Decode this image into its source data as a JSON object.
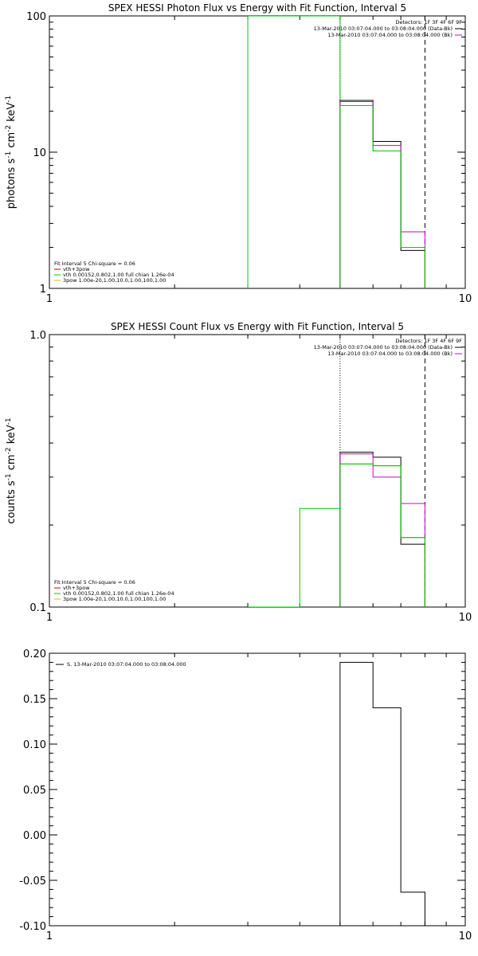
{
  "chart_data": [
    {
      "type": "line",
      "title": "SPEX HESSI Photon Flux vs Energy with Fit Function, Interval 5",
      "ylabel_text": "photons s",
      "ylabel_sup1": "-1",
      "ylabel_mid": " cm",
      "ylabel_sup2": "-2",
      "ylabel_end": " keV",
      "ylabel_sup3": "-1",
      "xscale": "log",
      "yscale": "log",
      "xlim": [
        1,
        10
      ],
      "ylim": [
        1,
        100
      ],
      "xticks": [
        {
          "v": 1,
          "label": "1"
        },
        {
          "v": 10,
          "label": "10"
        }
      ],
      "yticks": [
        {
          "v": 1,
          "label": "1"
        },
        {
          "v": 10,
          "label": "10"
        },
        {
          "v": 100,
          "label": "100"
        }
      ],
      "vlines": [
        {
          "x": 5,
          "style": "dotted"
        },
        {
          "x": 8,
          "style": "dashed"
        }
      ],
      "legend_tr": [
        {
          "text": "Detectors: 1F 3F 4F 6F 9F"
        },
        {
          "text": "13-Mar-2010 03:07:04.000 to 03:08:04.000 (Data-Bk)",
          "color": "#000000"
        },
        {
          "text": "13-Mar-2010 03:07:04.000 to 03:08:04.000 (Bk)",
          "color": "#cc00cc"
        }
      ],
      "legend_bl": [
        {
          "text": "Fit Interval 5   Chi-square = 0.06"
        },
        {
          "text": "vth+3pow",
          "color": "#cc0000"
        },
        {
          "text": "vth 0.00152,0.802,1.00  full chian 1.26e-04",
          "color": "#00cc00"
        },
        {
          "text": "3pow 1.00e-20,1.00,10.0,1.00,100,1.00",
          "color": "#ddbb00"
        }
      ],
      "series": [
        {
          "color": "#00cc00",
          "edges": [
            3,
            4,
            5,
            6,
            7,
            8
          ],
          "values": [
            100,
            100,
            22,
            10.2,
            2.0
          ]
        },
        {
          "color": "#000000",
          "edges": [
            5,
            6,
            7,
            8
          ],
          "values": [
            24,
            12,
            1.9
          ]
        },
        {
          "color": "#cc00cc",
          "edges": [
            5,
            6,
            7,
            8
          ],
          "values": [
            23.5,
            11.2,
            2.6
          ]
        },
        {
          "color": "#00cc00",
          "edges": [
            5,
            6,
            7,
            8
          ],
          "values": [
            22,
            10.2,
            2.0
          ]
        }
      ]
    },
    {
      "type": "line",
      "title": "SPEX HESSI Count Flux vs Energy with Fit Function, Interval 5",
      "ylabel_text": "counts s",
      "ylabel_sup1": "-1",
      "ylabel_mid": " cm",
      "ylabel_sup2": "-2",
      "ylabel_end": " keV",
      "ylabel_sup3": "-1",
      "xscale": "log",
      "yscale": "log",
      "xlim": [
        1,
        10
      ],
      "ylim": [
        0.1,
        1.0
      ],
      "xticks": [
        {
          "v": 1,
          "label": "1"
        },
        {
          "v": 10,
          "label": "10"
        }
      ],
      "yticks": [
        {
          "v": 0.1,
          "label": "0.1"
        },
        {
          "v": 1.0,
          "label": "1.0"
        }
      ],
      "vlines": [
        {
          "x": 5,
          "style": "dotted"
        },
        {
          "x": 8,
          "style": "dashed"
        }
      ],
      "legend_tr": [
        {
          "text": "Detectors: 1F 3F 4F 6F 9F"
        },
        {
          "text": "13-Mar-2010 03:07:04.000 to 03:08:04.000 (Data-Bk)",
          "color": "#000000"
        },
        {
          "text": "13-Mar-2010 03:07:04.000 to 03:08:04.000 (Bk)",
          "color": "#cc00cc"
        }
      ],
      "legend_bl": [
        {
          "text": "Fit Interval 5   Chi-square = 0.06"
        },
        {
          "text": "vth+3pow",
          "color": "#cc0000"
        },
        {
          "text": "vth 0.00152,0.802,1.00  full chian 1.26e-04",
          "color": "#00cc00"
        },
        {
          "text": "3pow 1.00e-20,1.00,10.0,1.00,100,1.00",
          "color": "#ddbb00"
        }
      ],
      "series": [
        {
          "color": "#00cc00",
          "edges": [
            3,
            4,
            5,
            6,
            7,
            8
          ],
          "values": [
            0.1,
            0.23,
            0.335,
            0.33,
            0.18
          ]
        },
        {
          "color": "#000000",
          "edges": [
            5,
            6,
            7,
            8
          ],
          "values": [
            0.37,
            0.355,
            0.17
          ]
        },
        {
          "color": "#cc00cc",
          "edges": [
            5,
            6,
            7,
            8
          ],
          "values": [
            0.365,
            0.3,
            0.24
          ]
        },
        {
          "color": "#00cc00",
          "edges": [
            5,
            6,
            7,
            8
          ],
          "values": [
            0.335,
            0.33,
            0.18
          ]
        }
      ]
    },
    {
      "type": "line",
      "title": "",
      "xscale": "log",
      "yscale": "linear",
      "xlim": [
        1,
        10
      ],
      "ylim": [
        -0.1,
        0.2
      ],
      "xticks": [
        {
          "v": 1,
          "label": "1"
        },
        {
          "v": 10,
          "label": "10"
        }
      ],
      "yticks": [
        {
          "v": -0.1,
          "label": "-0.10"
        },
        {
          "v": -0.05,
          "label": "-0.05"
        },
        {
          "v": 0.0,
          "label": "0.00"
        },
        {
          "v": 0.05,
          "label": "0.05"
        },
        {
          "v": 0.1,
          "label": "0.10"
        },
        {
          "v": 0.15,
          "label": "0.15"
        },
        {
          "v": 0.2,
          "label": "0.20"
        }
      ],
      "vlines": [],
      "legend_tl": [
        {
          "text": "S. 13-Mar-2010 03:07:04.000 to 03:08:04.000",
          "color": "#000000"
        }
      ],
      "series": [
        {
          "color": "#000000",
          "edges": [
            5,
            6,
            7,
            8
          ],
          "values": [
            0.19,
            0.14,
            -0.063
          ],
          "base": -0.1
        }
      ]
    }
  ]
}
